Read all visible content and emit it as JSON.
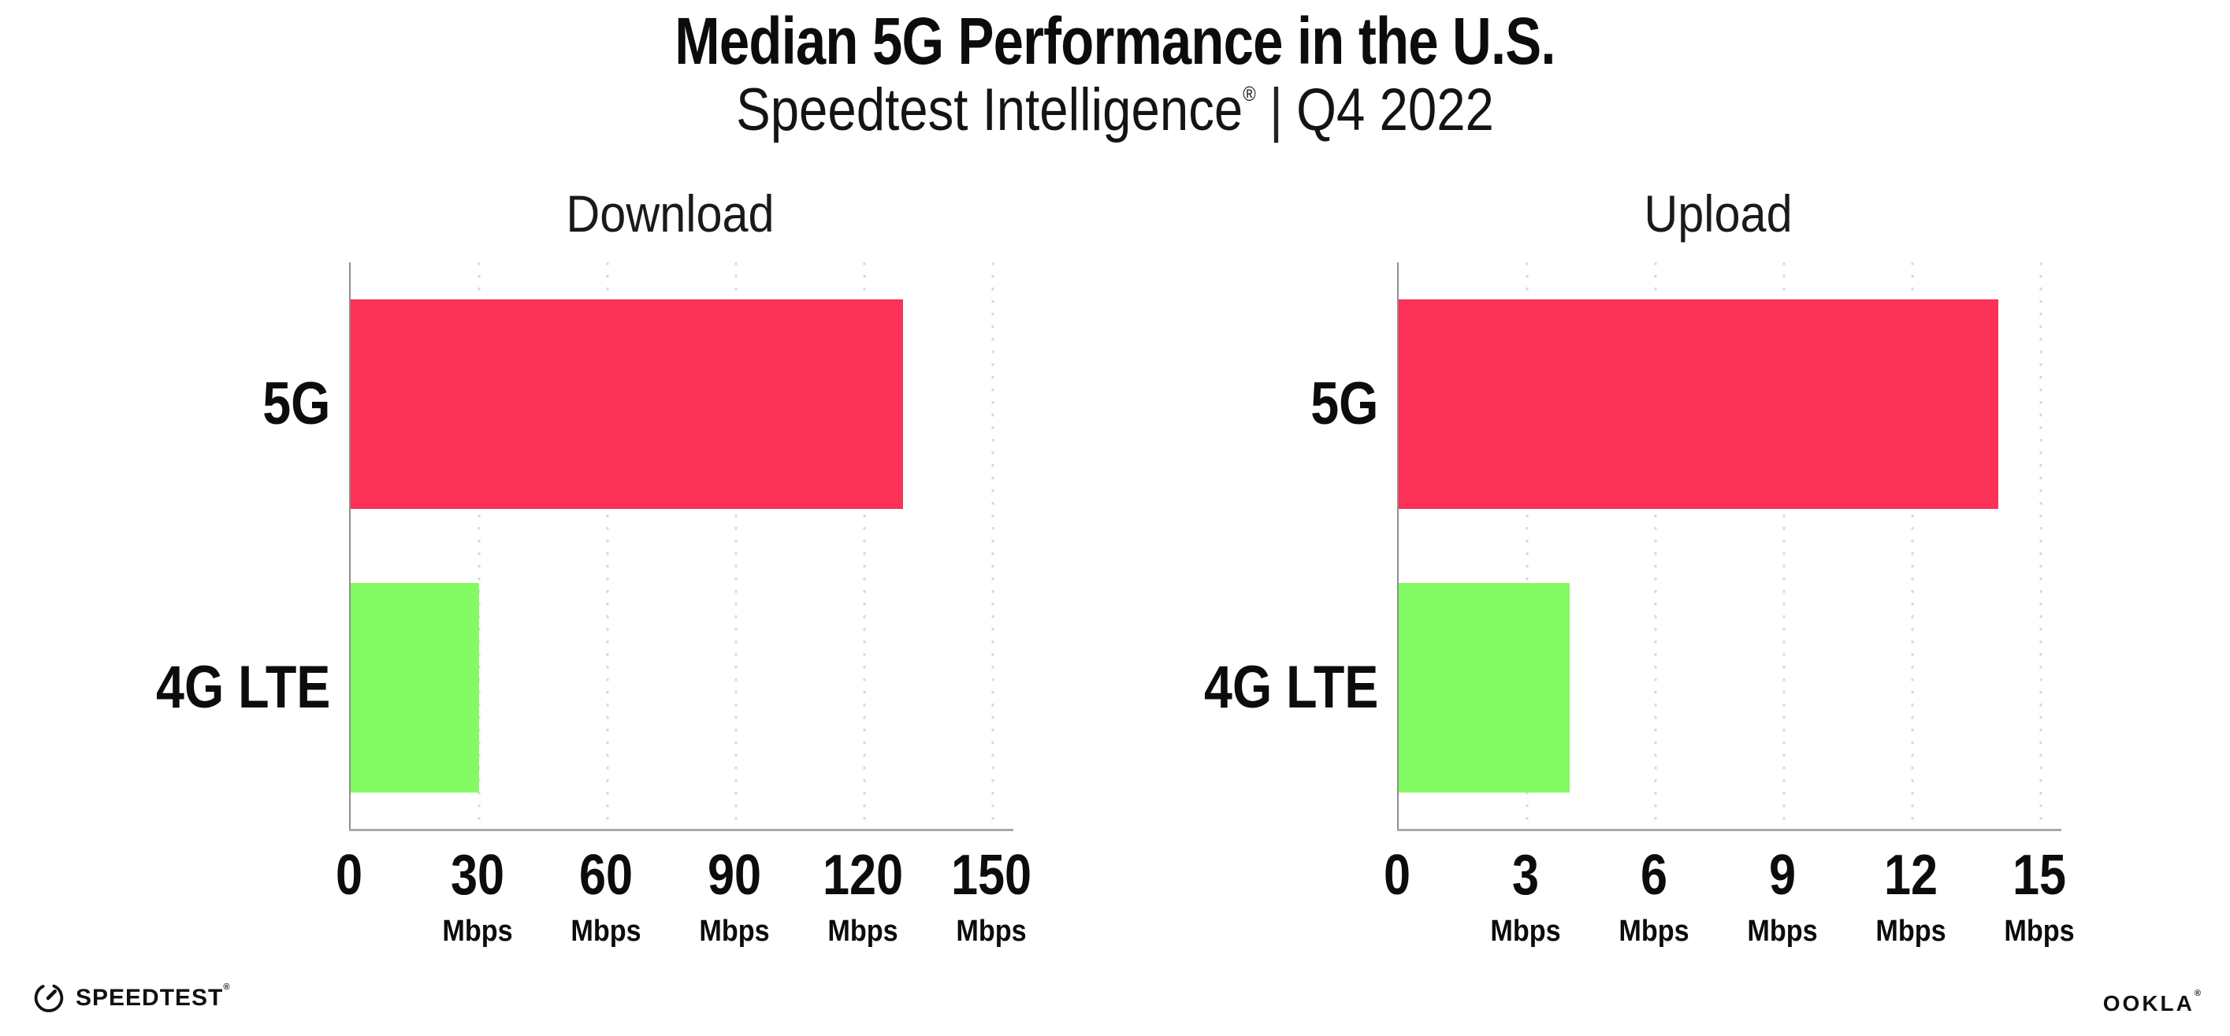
{
  "header": {
    "title": "Median 5G Performance in the U.S.",
    "subtitle_brand": "Speedtest Intelligence",
    "subtitle_reg": "®",
    "subtitle_separator": "|",
    "subtitle_period": "Q4 2022"
  },
  "chart_data": [
    {
      "type": "bar",
      "orientation": "horizontal",
      "title": "Download",
      "unit": "Mbps",
      "categories": [
        "5G",
        "4G LTE"
      ],
      "values": [
        129,
        30
      ],
      "xlim": [
        0,
        150
      ],
      "xticks": [
        0,
        30,
        60,
        90,
        120,
        150
      ],
      "bar_colors": [
        "#FC3157",
        "#84FB63"
      ],
      "grid": "vertical-dotted",
      "legend": "none"
    },
    {
      "type": "bar",
      "orientation": "horizontal",
      "title": "Upload",
      "unit": "Mbps",
      "categories": [
        "5G",
        "4G LTE"
      ],
      "values": [
        14,
        4
      ],
      "xlim": [
        0,
        15
      ],
      "xticks": [
        0,
        3,
        6,
        9,
        12,
        15
      ],
      "bar_colors": [
        "#FC3157",
        "#84FB63"
      ],
      "grid": "vertical-dotted",
      "legend": "none"
    }
  ],
  "footer": {
    "speedtest_label": "SPEEDTEST",
    "speedtest_mark": "®",
    "ookla_label": "OOKLA",
    "ookla_mark": "®"
  },
  "colors": {
    "bar_5g": "#FC3157",
    "bar_4g_lte": "#84FB63",
    "axis": "#A8A8A8",
    "gridline": "#D8D8E2",
    "text": "#0C0C0C"
  }
}
